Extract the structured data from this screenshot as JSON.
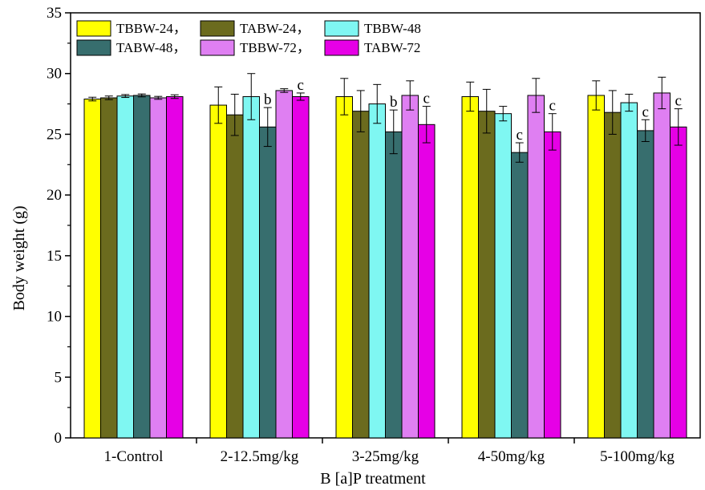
{
  "chart_data": {
    "type": "bar",
    "xlabel": "B [a]P treatment",
    "ylabel": "Body weight (g)",
    "ylim": [
      0,
      35
    ],
    "yticks": [
      0,
      5,
      10,
      15,
      20,
      25,
      30,
      35
    ],
    "categories": [
      "1-Control",
      "2-12.5mg/kg",
      "3-25mg/kg",
      "4-50mg/kg",
      "5-100mg/kg"
    ],
    "legend_position": "top-left",
    "legend_labels": [
      "TBBW-24，",
      "TABW-24，",
      "TBBW-48",
      "TABW-48，",
      "TBBW-72，",
      "TABW-72"
    ],
    "series": [
      {
        "name": "TBBW-24",
        "color": "#ffff00",
        "values": [
          27.9,
          27.4,
          28.1,
          28.1,
          28.2
        ],
        "errors": [
          0.15,
          1.5,
          1.5,
          1.2,
          1.2
        ],
        "labels": [
          "",
          "",
          "",
          "",
          ""
        ]
      },
      {
        "name": "TABW-24",
        "color": "#6b6b1e",
        "values": [
          28.0,
          26.6,
          26.9,
          26.9,
          26.8
        ],
        "errors": [
          0.15,
          1.7,
          1.7,
          1.8,
          1.8
        ],
        "labels": [
          "",
          "",
          "",
          "",
          ""
        ]
      },
      {
        "name": "TBBW-48",
        "color": "#7ff7f2",
        "values": [
          28.15,
          28.1,
          27.5,
          26.7,
          27.6
        ],
        "errors": [
          0.12,
          1.9,
          1.6,
          0.6,
          0.7
        ],
        "labels": [
          "",
          "",
          "",
          "",
          ""
        ]
      },
      {
        "name": "TABW-48",
        "color": "#376e6e",
        "values": [
          28.2,
          25.6,
          25.2,
          23.5,
          25.3
        ],
        "errors": [
          0.12,
          1.6,
          1.8,
          0.8,
          0.9
        ],
        "labels": [
          "",
          "b",
          "b",
          "c",
          "c"
        ]
      },
      {
        "name": "TBBW-72",
        "color": "#df7ff2",
        "values": [
          28.0,
          28.6,
          28.2,
          28.2,
          28.4
        ],
        "errors": [
          0.12,
          0.15,
          1.2,
          1.4,
          1.3
        ],
        "labels": [
          "",
          "",
          "",
          "",
          ""
        ]
      },
      {
        "name": "TABW-72",
        "color": "#e600e6",
        "values": [
          28.1,
          28.1,
          25.8,
          25.2,
          25.6
        ],
        "errors": [
          0.15,
          0.3,
          1.5,
          1.5,
          1.5
        ],
        "labels": [
          "",
          "c",
          "c",
          "c",
          "c"
        ]
      }
    ]
  }
}
